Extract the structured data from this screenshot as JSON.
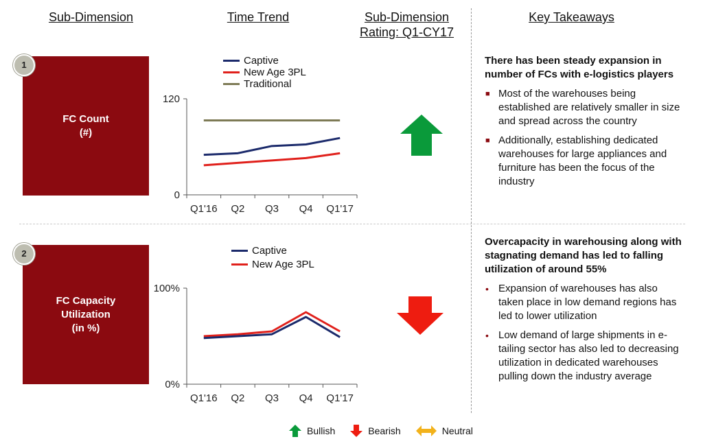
{
  "headers": {
    "sub_dimension": "Sub-Dimension",
    "time_trend": "Time Trend",
    "rating": "Sub-Dimension Rating: Q1-CY17",
    "takeaways": "Key Takeaways"
  },
  "sections": [
    {
      "number": "1",
      "box_line1": "FC Count",
      "box_line2": "(#)",
      "rating": "Bullish",
      "takeaway_head": "There has been steady expansion in number of FCs with e-logistics players",
      "bullets": [
        "Most of the warehouses being established are relatively smaller in size and spread across the country",
        "Additionally, establishing dedicated warehouses for large appliances and furniture has been the focus of the industry"
      ]
    },
    {
      "number": "2",
      "box_line1": "FC Capacity",
      "box_line2": "Utilization",
      "box_line3": "(in %)",
      "rating": "Bearish",
      "takeaway_head": "Overcapacity in warehousing along with stagnating demand has led to falling utilization of around 55%",
      "bullets": [
        "Expansion of warehouses has also taken place in low demand regions has led to lower utilization",
        "Low demand of large shipments in e-tailing sector has also led to decreasing utilization in dedicated warehouses pulling down the industry average"
      ]
    }
  ],
  "legend_bottom": {
    "bullish": "Bullish",
    "bearish": "Bearish",
    "neutral": "Neutral"
  },
  "colors": {
    "captive": "#1b2a6b",
    "new_age": "#e0201b",
    "traditional": "#7d7a55",
    "box": "#8b0a10",
    "bullish": "#0a9a3a",
    "bearish": "#ee1c10",
    "neutral": "#f2b21b"
  },
  "chart_data": [
    {
      "type": "line",
      "categories": [
        "Q1'16",
        "Q2",
        "Q3",
        "Q4",
        "Q1'17"
      ],
      "ylim": [
        0,
        120
      ],
      "yticks": [
        "0",
        "120"
      ],
      "series": [
        {
          "name": "Captive",
          "values": [
            50,
            52,
            61,
            63,
            71
          ]
        },
        {
          "name": "New Age 3PL",
          "values": [
            37,
            40,
            43,
            46,
            52
          ]
        },
        {
          "name": "Traditional",
          "values": [
            93,
            93,
            93,
            93,
            93
          ]
        }
      ]
    },
    {
      "type": "line",
      "categories": [
        "Q1'16",
        "Q2",
        "Q3",
        "Q4",
        "Q1'17"
      ],
      "ylim": [
        0,
        100
      ],
      "yticks": [
        "0%",
        "100%"
      ],
      "series": [
        {
          "name": "Captive",
          "values": [
            48,
            50,
            52,
            70,
            49
          ]
        },
        {
          "name": "New Age 3PL",
          "values": [
            50,
            52,
            55,
            75,
            55
          ]
        }
      ]
    }
  ]
}
